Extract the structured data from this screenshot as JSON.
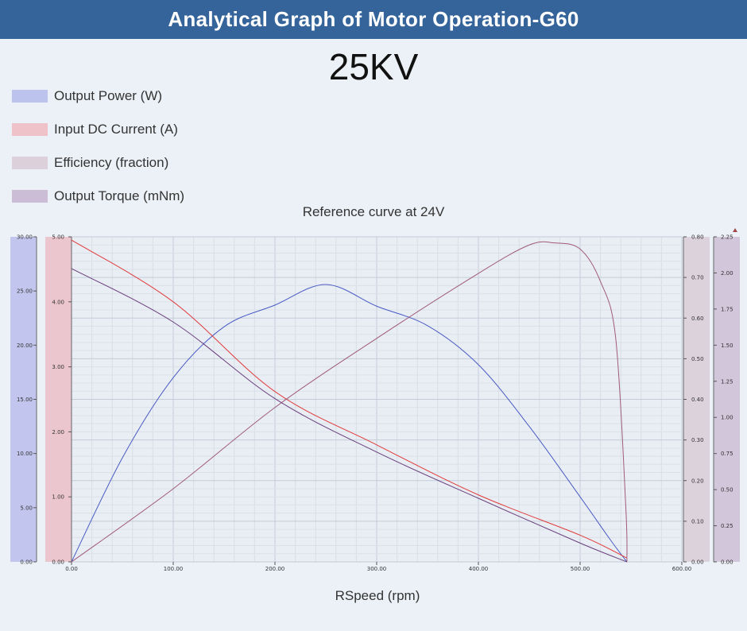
{
  "header": {
    "title": "Analytical Graph of Motor Operation-G60"
  },
  "kv_label": "25KV",
  "colors": {
    "header_bg": "#34649a",
    "power": "#4a5bc4",
    "current": "#e03a3a",
    "efficiency": "#a05a7c",
    "torque": "#6a3f7c",
    "power_band": "#c2c6ee",
    "current_band": "#ecc6cf",
    "efficiency_band": "#dcd2dc",
    "torque_band": "#d2c6da"
  },
  "legend": [
    {
      "label": "Output Power (W)",
      "color": "#bcc3ec"
    },
    {
      "label": "Input DC Current (A)",
      "color": "#eec2c8"
    },
    {
      "label": "Efficiency (fraction)",
      "color": "#dcd0da"
    },
    {
      "label": "Output Torque (mNm)",
      "color": "#ccbdd6"
    }
  ],
  "chart_data": {
    "type": "line",
    "subtitle": "Reference curve at 24V",
    "xlabel": "RSpeed (rpm)",
    "xlim": [
      0,
      600
    ],
    "x_ticks": [
      "0.00",
      "100.00",
      "200.00",
      "300.00",
      "400.00",
      "500.00",
      "600.00"
    ],
    "axes": {
      "power": {
        "range": [
          0,
          30
        ],
        "ticks": [
          "0.00",
          "5.00",
          "10.00",
          "15.00",
          "20.00",
          "25.00",
          "30.00"
        ]
      },
      "current": {
        "range": [
          0,
          5
        ],
        "ticks": [
          "0.00",
          "1.00",
          "2.00",
          "3.00",
          "4.00",
          "5.00"
        ]
      },
      "efficiency": {
        "range": [
          0,
          0.8
        ],
        "ticks": [
          "0.00",
          "0.10",
          "0.20",
          "0.30",
          "0.40",
          "0.50",
          "0.60",
          "0.70",
          "0.80"
        ]
      },
      "torque": {
        "range": [
          0,
          2.25
        ],
        "ticks": [
          "0.00",
          "0.25",
          "0.50",
          "0.75",
          "1.00",
          "1.25",
          "1.50",
          "1.75",
          "2.00",
          "2.25"
        ]
      }
    },
    "grid": true,
    "series": [
      {
        "name": "Output Power (W)",
        "axis": "power",
        "x": [
          0,
          50,
          100,
          150,
          200,
          250,
          300,
          350,
          400,
          450,
          500,
          530,
          546
        ],
        "y": [
          0,
          9.6,
          17.0,
          21.7,
          23.7,
          25.6,
          23.6,
          21.8,
          18.2,
          12.5,
          6.0,
          2.0,
          0
        ]
      },
      {
        "name": "Input DC Current (A)",
        "axis": "current",
        "x": [
          0,
          100,
          200,
          300,
          400,
          500,
          546
        ],
        "y": [
          4.95,
          4.0,
          2.62,
          1.8,
          1.03,
          0.41,
          0.06
        ]
      },
      {
        "name": "Efficiency (fraction)",
        "axis": "efficiency",
        "x": [
          0,
          100,
          200,
          300,
          400,
          450,
          475,
          500,
          520,
          535,
          545,
          546
        ],
        "y": [
          0,
          0.18,
          0.38,
          0.55,
          0.71,
          0.78,
          0.785,
          0.77,
          0.69,
          0.55,
          0.13,
          0
        ]
      },
      {
        "name": "Output Torque (mNm)",
        "axis": "torque",
        "x": [
          0,
          100,
          200,
          300,
          400,
          500,
          546
        ],
        "y": [
          2.03,
          1.66,
          1.13,
          0.76,
          0.44,
          0.13,
          0
        ]
      }
    ]
  }
}
